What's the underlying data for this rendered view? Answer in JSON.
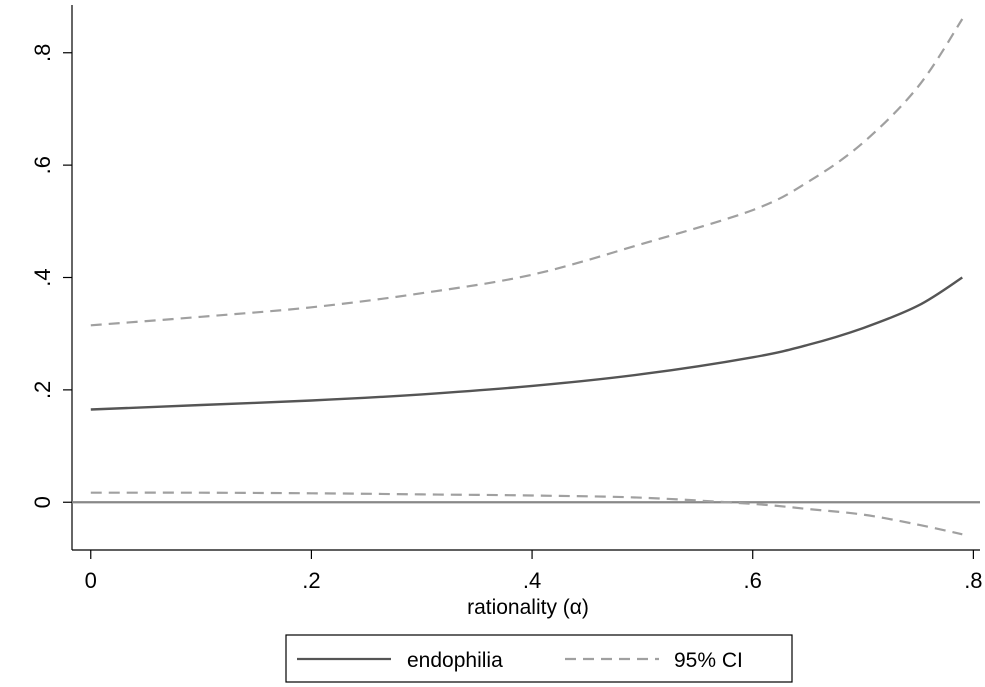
{
  "chart_data": {
    "type": "line",
    "title": "",
    "xlabel": "rationality (α)",
    "ylabel": "",
    "xlim": [
      -0.017,
      0.806
    ],
    "ylim": [
      -0.085,
      0.885
    ],
    "xticks": [
      0,
      0.2,
      0.4,
      0.6,
      0.8
    ],
    "xtick_labels": [
      "0",
      ".2",
      ".4",
      ".6",
      ".8"
    ],
    "yticks": [
      0,
      0.2,
      0.4,
      0.6,
      0.8
    ],
    "ytick_labels": [
      "0",
      ".2",
      ".4",
      ".6",
      ".8"
    ],
    "reference_line_y": 0,
    "grid": false,
    "legend_position": "bottom",
    "x": [
      0,
      0.1,
      0.2,
      0.3,
      0.4,
      0.5,
      0.6,
      0.65,
      0.7,
      0.75,
      0.79
    ],
    "series": [
      {
        "name": "endophilia",
        "style": "solid",
        "color": "#555555",
        "values": [
          0.165,
          0.173,
          0.181,
          0.192,
          0.207,
          0.228,
          0.258,
          0.28,
          0.31,
          0.35,
          0.4
        ]
      },
      {
        "name": "95% CI",
        "style": "dashed",
        "color": "#a0a0a0",
        "upper": [
          0.315,
          0.33,
          0.347,
          0.372,
          0.405,
          0.46,
          0.52,
          0.57,
          0.64,
          0.74,
          0.86
        ],
        "lower": [
          0.017,
          0.017,
          0.016,
          0.014,
          0.012,
          0.008,
          -0.003,
          -0.012,
          -0.022,
          -0.04,
          -0.057
        ]
      }
    ]
  }
}
